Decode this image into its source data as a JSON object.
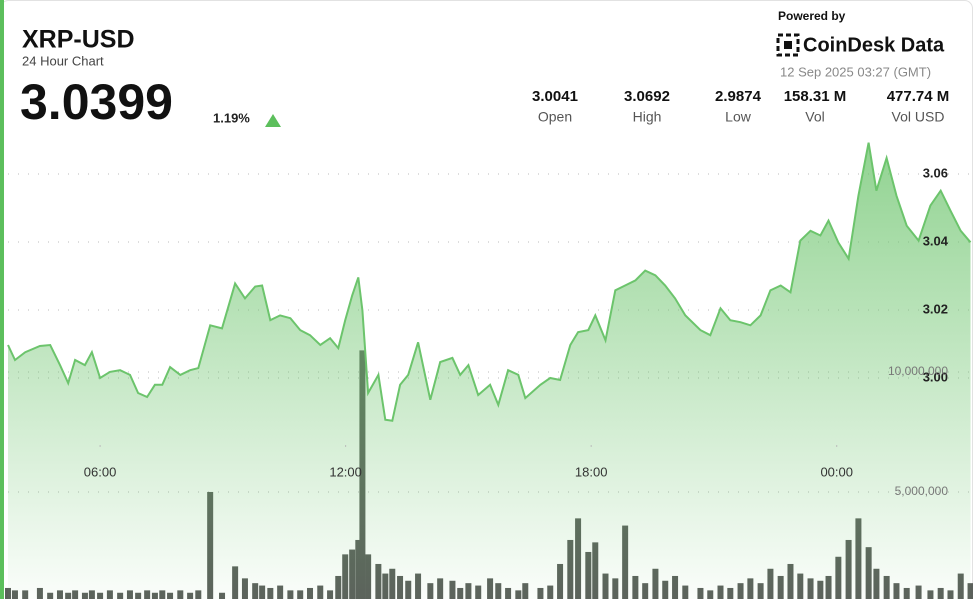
{
  "header": {
    "title": "XRP-USD",
    "subtitle": "24 Hour Chart",
    "price": "3.0399",
    "change": "1.19%",
    "powered_by": "Powered by",
    "brand": "CoinDesk Data",
    "timestamp": "12 Sep 2025 03:27 (GMT)"
  },
  "stats": [
    {
      "value": "3.0041",
      "label": "Open"
    },
    {
      "value": "3.0692",
      "label": "High"
    },
    {
      "value": "2.9874",
      "label": "Low"
    },
    {
      "value": "158.31 M",
      "label": "Vol"
    },
    {
      "value": "477.74 M",
      "label": "Vol USD"
    }
  ],
  "chart_data": {
    "type": "line",
    "x": [
      3.75,
      3.92,
      4.17,
      4.53,
      4.78,
      5.02,
      5.22,
      5.39,
      5.63,
      5.8,
      6.0,
      6.24,
      6.49,
      6.73,
      6.93,
      7.15,
      7.34,
      7.52,
      7.71,
      7.96,
      8.2,
      8.4,
      8.69,
      8.98,
      9.3,
      9.54,
      9.79,
      9.96,
      10.16,
      10.4,
      10.65,
      10.89,
      11.13,
      11.38,
      11.62,
      11.82,
      11.99,
      12.16,
      12.31,
      12.41,
      12.55,
      12.8,
      12.97,
      13.14,
      13.33,
      13.53,
      13.77,
      14.07,
      14.31,
      14.61,
      14.8,
      15.0,
      15.24,
      15.53,
      15.73,
      15.97,
      16.22,
      16.39,
      16.76,
      17.0,
      17.24,
      17.49,
      17.68,
      17.93,
      18.1,
      18.35,
      18.59,
      18.83,
      19.08,
      19.32,
      19.57,
      19.81,
      20.05,
      20.3,
      20.67,
      20.91,
      21.16,
      21.4,
      21.65,
      21.89,
      22.14,
      22.38,
      22.63,
      22.87,
      23.11,
      23.36,
      23.6,
      23.8,
      24.04,
      24.29,
      24.53,
      24.78,
      24.97,
      25.22,
      25.46,
      25.71,
      26.0,
      26.29,
      26.54,
      26.78,
      27.03,
      27.27
    ],
    "series": [
      {
        "color": "#6cc46c",
        "values": [
          3.0097,
          3.0053,
          3.0076,
          3.0094,
          3.0097,
          3.0038,
          2.9985,
          3.0053,
          3.0038,
          3.0076,
          3.0,
          3.0018,
          3.0023,
          3.0009,
          2.9956,
          2.9944,
          2.998,
          2.998,
          3.0032,
          3.0009,
          3.0023,
          3.0029,
          3.0155,
          3.0146,
          3.0278,
          3.0234,
          3.0269,
          3.0272,
          3.017,
          3.0184,
          3.0176,
          3.0141,
          3.0126,
          3.0097,
          3.0117,
          3.0088,
          3.017,
          3.0243,
          3.0296,
          3.0199,
          2.9956,
          3.0009,
          2.9877,
          2.9874,
          2.998,
          3.0009,
          3.0105,
          2.9936,
          3.0047,
          3.0059,
          3.0009,
          3.0038,
          2.995,
          2.998,
          2.9921,
          3.0023,
          3.0009,
          2.9941,
          2.998,
          3.0,
          2.9994,
          3.0097,
          3.0135,
          3.0141,
          3.0184,
          3.0111,
          3.0258,
          3.0272,
          3.0287,
          3.0316,
          3.0302,
          3.0272,
          3.0234,
          3.0184,
          3.0141,
          3.0126,
          3.0205,
          3.017,
          3.0164,
          3.0155,
          3.0184,
          3.0258,
          3.0272,
          3.0252,
          3.0404,
          3.0433,
          3.0419,
          3.0463,
          3.0398,
          3.0351,
          3.0536,
          3.0692,
          3.0551,
          3.0647,
          3.0536,
          3.0448,
          3.0404,
          3.0507,
          3.0551,
          3.0492,
          3.0433,
          3.0399
        ]
      },
      {
        "type": "bar",
        "axis": "y2",
        "color": "#5b605b",
        "values": [
          1000000,
          900000,
          900000,
          1000000,
          800000,
          900000,
          800000,
          900000,
          800000,
          900000,
          800000,
          900000,
          800000,
          900000,
          800000,
          900000,
          800000,
          900000,
          800000,
          900000,
          800000,
          900000,
          5000000,
          800000,
          1900000,
          1400000,
          1200000,
          1100000,
          1000000,
          1100000,
          900000,
          900000,
          1000000,
          1100000,
          900000,
          1500000,
          2400000,
          2600000,
          3000000,
          10900000,
          2400000,
          2000000,
          1600000,
          1800000,
          1500000,
          1300000,
          1600000,
          1200000,
          1400000,
          1300000,
          1000000,
          1200000,
          1100000,
          1400000,
          1200000,
          1000000,
          900000,
          1200000,
          1000000,
          1100000,
          2000000,
          3000000,
          3900000,
          2500000,
          2900000,
          1600000,
          1400000,
          3600000,
          1500000,
          1200000,
          1800000,
          1300000,
          1500000,
          1100000,
          1000000,
          900000,
          1100000,
          1000000,
          1200000,
          1400000,
          1200000,
          1800000,
          1500000,
          2000000,
          1600000,
          1400000,
          1300000,
          1500000,
          2300000,
          3000000,
          3900000,
          2700000,
          1800000,
          1500000,
          1200000,
          1000000,
          1100000,
          900000,
          1000000,
          900000,
          1600000,
          1200000
        ]
      }
    ],
    "xlim": [
      3.75,
      27.33
    ],
    "xticks": [
      {
        "value": 6,
        "label": "06:00"
      },
      {
        "value": 12,
        "label": "12:00"
      },
      {
        "value": 18,
        "label": "18:00"
      },
      {
        "value": 24,
        "label": "00:00"
      }
    ],
    "ylim": [
      2.935,
      3.07
    ],
    "yticks": [
      {
        "value": 3,
        "label": "3.00"
      },
      3.02,
      3.04,
      3.06
    ],
    "y2lim": [
      540000,
      25000000
    ],
    "y2ticks": [
      {
        "value": 5000000,
        "label": "5,000,000"
      },
      {
        "value": 10000000,
        "label": "10,000,000"
      }
    ],
    "grid": true
  }
}
